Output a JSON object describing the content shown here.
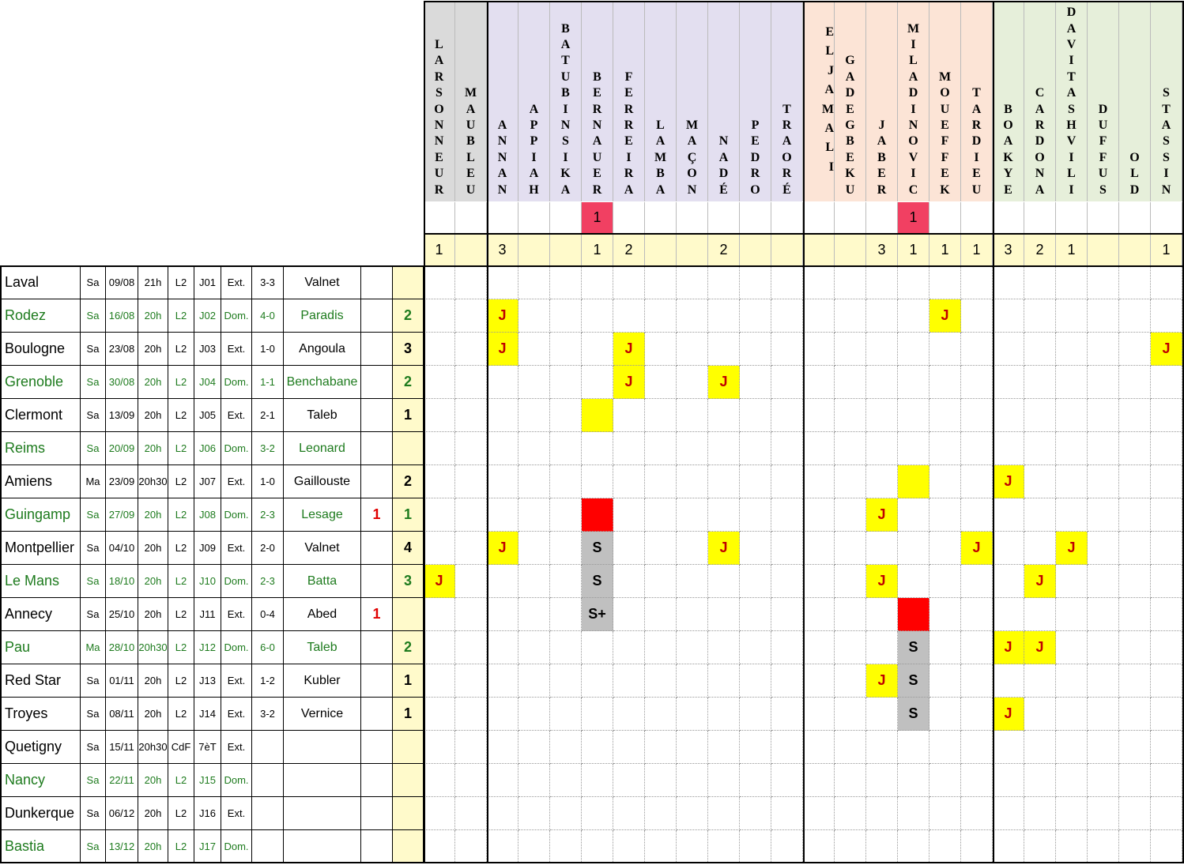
{
  "colors": {
    "grey_header": "#dadada",
    "purple_header": "#e3dff0",
    "orange_header": "#fce4d6",
    "green_header": "#e6efda",
    "total_fill": "#fffacb",
    "yellow_card": "#ffff00",
    "red_card": "#ff0000",
    "red_tally": "#f14062",
    "suspension": "#c0c0c0",
    "home_text": "#1e7b1e",
    "red_number": "#e00000"
  },
  "players": [
    {
      "name": "LARSONNEUR",
      "group": "grey",
      "red": "",
      "total": "1"
    },
    {
      "name": "MAUBLEU",
      "group": "grey",
      "red": "",
      "total": ""
    },
    {
      "name": "ANNAN",
      "group": "purple",
      "red": "",
      "total": "3"
    },
    {
      "name": "APPIAH",
      "group": "purple",
      "red": "",
      "total": ""
    },
    {
      "name": "BATUBINSIKA",
      "group": "purple",
      "red": "",
      "total": ""
    },
    {
      "name": "BERNAUER",
      "group": "purple",
      "red": "1",
      "total": "1"
    },
    {
      "name": "FERREIRA",
      "group": "purple",
      "red": "",
      "total": "2"
    },
    {
      "name": "LAMBA",
      "group": "purple",
      "red": "",
      "total": ""
    },
    {
      "name": "MAÇON",
      "group": "purple",
      "red": "",
      "total": ""
    },
    {
      "name": "NADÉ",
      "group": "purple",
      "red": "",
      "total": "2"
    },
    {
      "name": "PEDRO",
      "group": "purple",
      "red": "",
      "total": ""
    },
    {
      "name": "TRAORÉ",
      "group": "purple",
      "red": "",
      "total": ""
    },
    {
      "name": "EL JAMALI",
      "group": "orange",
      "red": "",
      "total": ""
    },
    {
      "name": "GADEGBEKU",
      "group": "orange",
      "red": "",
      "total": ""
    },
    {
      "name": "JABER",
      "group": "orange",
      "red": "",
      "total": "3"
    },
    {
      "name": "MILADINOVIC",
      "group": "orange",
      "red": "1",
      "total": "1"
    },
    {
      "name": "MOUEFFEK",
      "group": "orange",
      "red": "",
      "total": "1"
    },
    {
      "name": "TARDIEU",
      "group": "orange",
      "red": "",
      "total": "1"
    },
    {
      "name": "BOAKYE",
      "group": "green",
      "red": "",
      "total": "3"
    },
    {
      "name": "CARDONA",
      "group": "green",
      "red": "",
      "total": "2"
    },
    {
      "name": "DAVITASHVILI",
      "group": "green",
      "red": "",
      "total": "1"
    },
    {
      "name": "DUFFUS",
      "group": "green",
      "red": "",
      "total": ""
    },
    {
      "name": "OLD",
      "group": "green",
      "red": "",
      "total": ""
    },
    {
      "name": "STASSIN",
      "group": "green",
      "red": "",
      "total": "1"
    }
  ],
  "matches": [
    {
      "opponent": "Laval",
      "day": "Sa",
      "date": "09/08",
      "time": "21h",
      "comp": "L2",
      "round": "J01",
      "venue": "Ext.",
      "score": "3-3",
      "referee": "Valnet",
      "reds": "",
      "yellows": "",
      "home": false,
      "cards": {}
    },
    {
      "opponent": "Rodez",
      "day": "Sa",
      "date": "16/08",
      "time": "20h",
      "comp": "L2",
      "round": "J02",
      "venue": "Dom.",
      "score": "4-0",
      "referee": "Paradis",
      "reds": "",
      "yellows": "2",
      "home": true,
      "cards": {
        "2": "J",
        "16": "J"
      }
    },
    {
      "opponent": "Boulogne",
      "day": "Sa",
      "date": "23/08",
      "time": "20h",
      "comp": "L2",
      "round": "J03",
      "venue": "Ext.",
      "score": "1-0",
      "referee": "Angoula",
      "reds": "",
      "yellows": "3",
      "home": false,
      "cards": {
        "2": "J",
        "6": "J",
        "23": "J"
      }
    },
    {
      "opponent": "Grenoble",
      "day": "Sa",
      "date": "30/08",
      "time": "20h",
      "comp": "L2",
      "round": "J04",
      "venue": "Dom.",
      "score": "1-1",
      "referee": "Benchabane",
      "reds": "",
      "yellows": "2",
      "home": true,
      "cards": {
        "6": "J",
        "9": "J"
      }
    },
    {
      "opponent": "Clermont",
      "day": "Sa",
      "date": "13/09",
      "time": "20h",
      "comp": "L2",
      "round": "J05",
      "venue": "Ext.",
      "score": "2-1",
      "referee": "Taleb",
      "reds": "",
      "yellows": "1",
      "home": false,
      "cards": {
        "5": "Y"
      }
    },
    {
      "opponent": "Reims",
      "day": "Sa",
      "date": "20/09",
      "time": "20h",
      "comp": "L2",
      "round": "J06",
      "venue": "Dom.",
      "score": "3-2",
      "referee": "Leonard",
      "reds": "",
      "yellows": "",
      "home": true,
      "cards": {}
    },
    {
      "opponent": "Amiens",
      "day": "Ma",
      "date": "23/09",
      "time": "20h30",
      "comp": "L2",
      "round": "J07",
      "venue": "Ext.",
      "score": "1-0",
      "referee": "Gaillouste",
      "reds": "",
      "yellows": "2",
      "home": false,
      "cards": {
        "15": "Y",
        "18": "J"
      }
    },
    {
      "opponent": "Guingamp",
      "day": "Sa",
      "date": "27/09",
      "time": "20h",
      "comp": "L2",
      "round": "J08",
      "venue": "Dom.",
      "score": "2-3",
      "referee": "Lesage",
      "reds": "1",
      "yellows": "1",
      "home": true,
      "cards": {
        "5": "R",
        "14": "J"
      }
    },
    {
      "opponent": "Montpellier",
      "day": "Sa",
      "date": "04/10",
      "time": "20h",
      "comp": "L2",
      "round": "J09",
      "venue": "Ext.",
      "score": "2-0",
      "referee": "Valnet",
      "reds": "",
      "yellows": "4",
      "home": false,
      "cards": {
        "2": "J",
        "5": "S",
        "9": "J",
        "17": "J",
        "20": "J"
      }
    },
    {
      "opponent": "Le Mans",
      "day": "Sa",
      "date": "18/10",
      "time": "20h",
      "comp": "L2",
      "round": "J10",
      "venue": "Dom.",
      "score": "2-3",
      "referee": "Batta",
      "reds": "",
      "yellows": "3",
      "home": true,
      "cards": {
        "0": "J",
        "5": "S",
        "14": "J",
        "19": "J"
      }
    },
    {
      "opponent": "Annecy",
      "day": "Sa",
      "date": "25/10",
      "time": "20h",
      "comp": "L2",
      "round": "J11",
      "venue": "Ext.",
      "score": "0-4",
      "referee": "Abed",
      "reds": "1",
      "yellows": "",
      "home": false,
      "cards": {
        "5": "S+",
        "15": "R"
      }
    },
    {
      "opponent": "Pau",
      "day": "Ma",
      "date": "28/10",
      "time": "20h30",
      "comp": "L2",
      "round": "J12",
      "venue": "Dom.",
      "score": "6-0",
      "referee": "Taleb",
      "reds": "",
      "yellows": "2",
      "home": true,
      "cards": {
        "15": "S",
        "18": "J",
        "19": "J"
      }
    },
    {
      "opponent": "Red Star",
      "day": "Sa",
      "date": "01/11",
      "time": "20h",
      "comp": "L2",
      "round": "J13",
      "venue": "Ext.",
      "score": "1-2",
      "referee": "Kubler",
      "reds": "",
      "yellows": "1",
      "home": false,
      "cards": {
        "14": "J",
        "15": "S"
      }
    },
    {
      "opponent": "Troyes",
      "day": "Sa",
      "date": "08/11",
      "time": "20h",
      "comp": "L2",
      "round": "J14",
      "venue": "Ext.",
      "score": "3-2",
      "referee": "Vernice",
      "reds": "",
      "yellows": "1",
      "home": false,
      "cards": {
        "15": "S",
        "18": "J"
      }
    },
    {
      "opponent": "Quetigny",
      "day": "Sa",
      "date": "15/11",
      "time": "20h30",
      "comp": "CdF",
      "round": "7èT",
      "venue": "Ext.",
      "score": "",
      "referee": "",
      "reds": "",
      "yellows": "",
      "home": false,
      "cards": {}
    },
    {
      "opponent": "Nancy",
      "day": "Sa",
      "date": "22/11",
      "time": "20h",
      "comp": "L2",
      "round": "J15",
      "venue": "Dom.",
      "score": "",
      "referee": "",
      "reds": "",
      "yellows": "",
      "home": true,
      "cards": {}
    },
    {
      "opponent": "Dunkerque",
      "day": "Sa",
      "date": "06/12",
      "time": "20h",
      "comp": "L2",
      "round": "J16",
      "venue": "Ext.",
      "score": "",
      "referee": "",
      "reds": "",
      "yellows": "",
      "home": false,
      "cards": {}
    },
    {
      "opponent": "Bastia",
      "day": "Sa",
      "date": "13/12",
      "time": "20h",
      "comp": "L2",
      "round": "J17",
      "venue": "Dom.",
      "score": "",
      "referee": "",
      "reds": "",
      "yellows": "",
      "home": true,
      "cards": {}
    }
  ]
}
